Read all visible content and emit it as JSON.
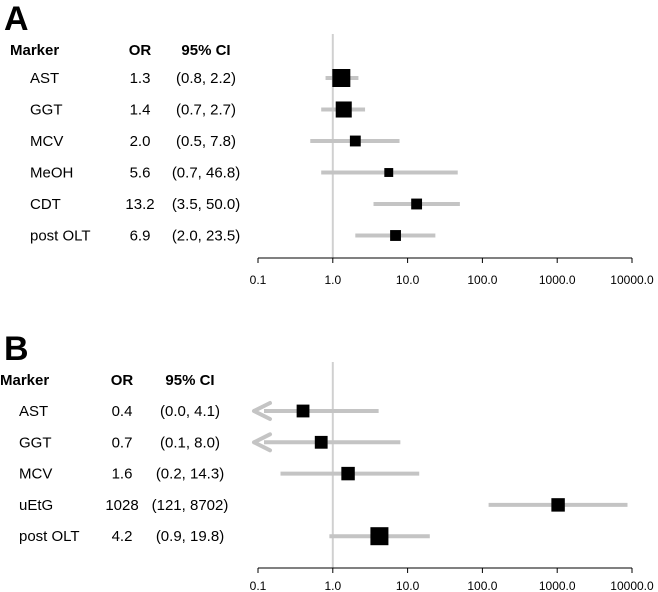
{
  "chart_data": [
    {
      "type": "forest",
      "panel_label": "A",
      "columns": [
        "Marker",
        "OR",
        "95% CI"
      ],
      "rows": [
        {
          "marker": "AST",
          "or": 1.3,
          "or_text": "1.3",
          "ci_text": "(0.8, 2.2)",
          "lower": 0.8,
          "upper": 2.2,
          "weight": 1.0
        },
        {
          "marker": "GGT",
          "or": 1.4,
          "or_text": "1.4",
          "ci_text": "(0.7, 2.7)",
          "lower": 0.7,
          "upper": 2.7,
          "weight": 0.85
        },
        {
          "marker": "MCV",
          "or": 2.0,
          "or_text": "2.0",
          "ci_text": "(0.5, 7.8)",
          "lower": 0.5,
          "upper": 7.8,
          "weight": 0.45
        },
        {
          "marker": "MeOH",
          "or": 5.6,
          "or_text": "5.6",
          "ci_text": "(0.7, 46.8)",
          "lower": 0.7,
          "upper": 46.8,
          "weight": 0.3
        },
        {
          "marker": "CDT",
          "or": 13.2,
          "or_text": "13.2",
          "ci_text": "(3.5, 50.0)",
          "lower": 3.5,
          "upper": 50.0,
          "weight": 0.45
        },
        {
          "marker": "post OLT",
          "or": 6.9,
          "or_text": "6.9",
          "ci_text": "(2.0, 23.5)",
          "lower": 2.0,
          "upper": 23.5,
          "weight": 0.45
        }
      ],
      "x_scale": "log",
      "xlim": [
        0.1,
        10000
      ],
      "reference_line": 1,
      "x_ticks": [
        "0.1",
        "1.0",
        "10.0",
        "100.0",
        "1000.0",
        "10000.0"
      ]
    },
    {
      "type": "forest",
      "panel_label": "B",
      "columns": [
        "Marker",
        "OR",
        "95% CI"
      ],
      "rows": [
        {
          "marker": "AST",
          "or": 0.4,
          "or_text": "0.4",
          "ci_text": "(0.0, 4.1)",
          "lower": 0.0,
          "upper": 4.1,
          "weight": 0.6,
          "lower_arrow": true
        },
        {
          "marker": "GGT",
          "or": 0.7,
          "or_text": "0.7",
          "ci_text": "(0.1, 8.0)",
          "lower": 0.1,
          "upper": 8.0,
          "weight": 0.6,
          "lower_arrow": true
        },
        {
          "marker": "MCV",
          "or": 1.6,
          "or_text": "1.6",
          "ci_text": "(0.2, 14.3)",
          "lower": 0.2,
          "upper": 14.3,
          "weight": 0.65
        },
        {
          "marker": "uEtG",
          "or": 1028,
          "or_text": "1028",
          "ci_text": "(121, 8702)",
          "lower": 121,
          "upper": 8702,
          "weight": 0.65
        },
        {
          "marker": "post OLT",
          "or": 4.2,
          "or_text": "4.2",
          "ci_text": "(0.9, 19.8)",
          "lower": 0.9,
          "upper": 19.8,
          "weight": 1.0
        }
      ],
      "x_scale": "log",
      "xlim": [
        0.1,
        10000
      ],
      "reference_line": 1,
      "x_ticks": [
        "0.1",
        "1.0",
        "10.0",
        "100.0",
        "1000.0",
        "10000.0"
      ]
    }
  ],
  "colors": {
    "ci_line": "#c4c4c4",
    "reference_line": "#d0d0d0",
    "marker": "#000000",
    "axis": "#000000"
  }
}
